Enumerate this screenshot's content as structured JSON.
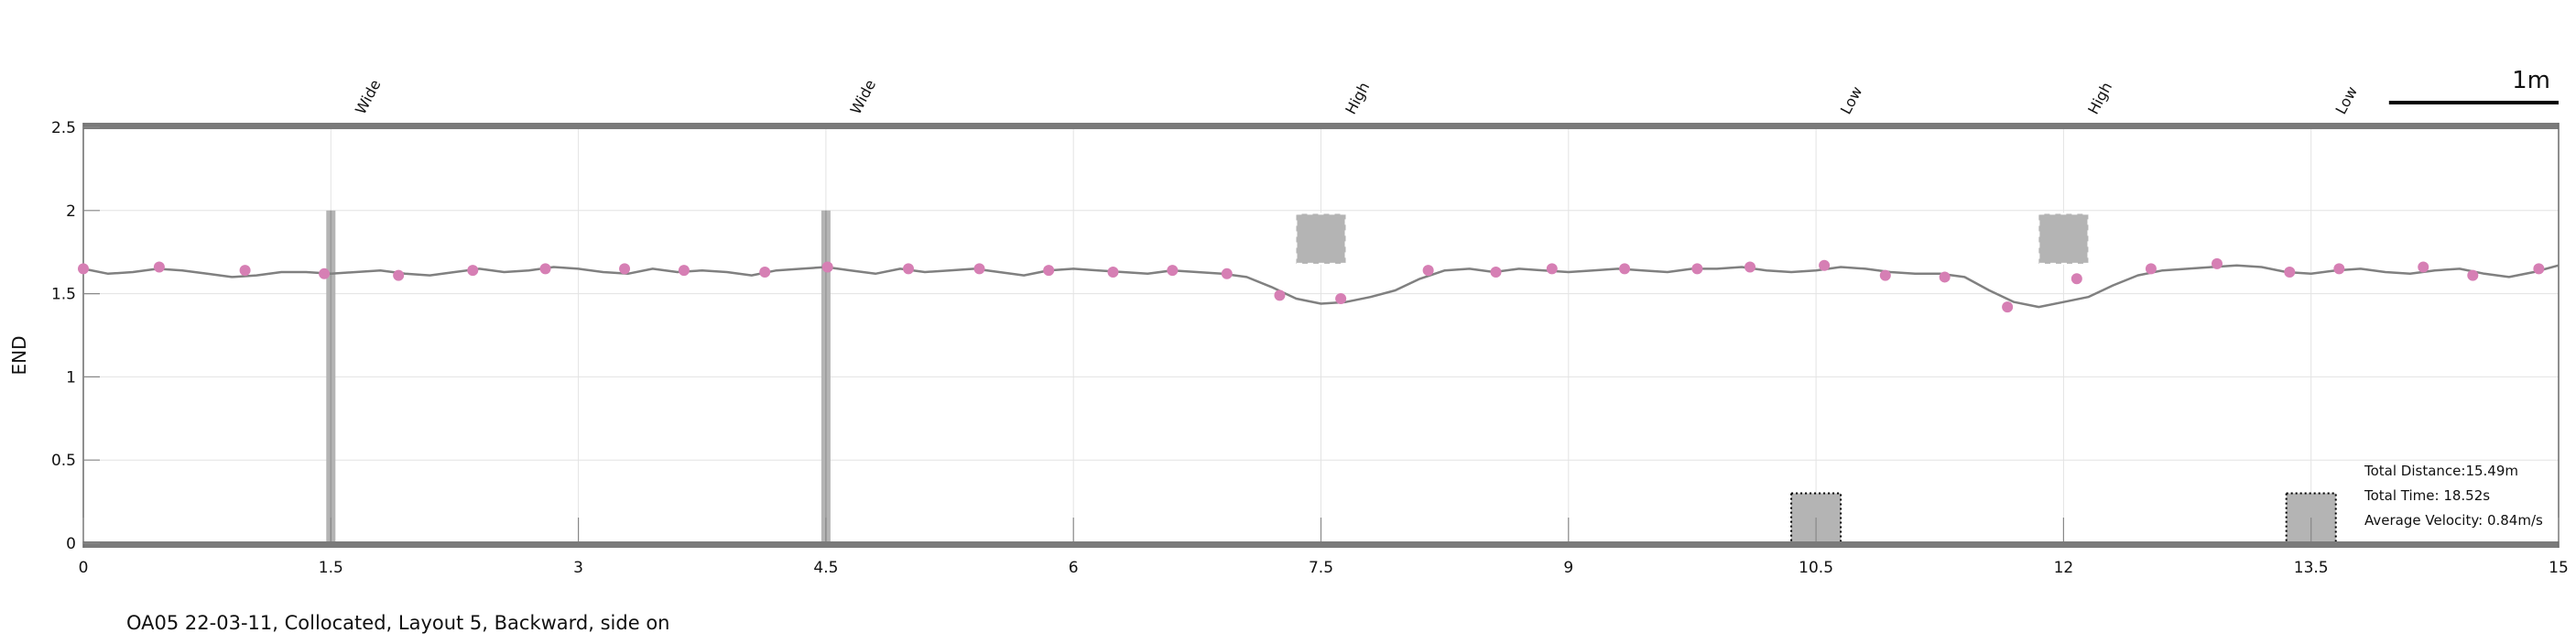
{
  "chart_data": {
    "type": "line",
    "title": "",
    "xlabel": "",
    "ylabel": "END",
    "xlim": [
      0,
      15
    ],
    "ylim": [
      0,
      2.5
    ],
    "xticks": [
      0,
      1.5,
      3,
      4.5,
      6,
      7.5,
      9,
      10.5,
      12,
      13.5,
      15
    ],
    "xtick_labels": [
      "0",
      "1.5",
      "3",
      "4.5",
      "6",
      "7.5",
      "9",
      "10.5",
      "12",
      "13.5",
      "15"
    ],
    "yticks": [
      0,
      0.5,
      1,
      1.5,
      2,
      2.5
    ],
    "ytick_labels": [
      "0",
      "0.5",
      "1",
      "1.5",
      "2",
      "2.5"
    ],
    "grid": true,
    "line_color": "#808080",
    "marker_color": "#d67fb4",
    "obstacle_color": "#b4b4b4",
    "series": [
      {
        "x": [
          0,
          0.15,
          0.3,
          0.45,
          0.6,
          0.75,
          0.9,
          1.05,
          1.2,
          1.35,
          1.5,
          1.65,
          1.8,
          1.95,
          2.1,
          2.25,
          2.4,
          2.55,
          2.7,
          2.85,
          3.0,
          3.15,
          3.3,
          3.45,
          3.6,
          3.75,
          3.9,
          4.05,
          4.2,
          4.35,
          4.5,
          4.65,
          4.8,
          4.95,
          5.1,
          5.25,
          5.4,
          5.55,
          5.7,
          5.85,
          6.0,
          6.15,
          6.3,
          6.45,
          6.6,
          6.75,
          6.9,
          7.05,
          7.2,
          7.35,
          7.5,
          7.65,
          7.8,
          7.95,
          8.1,
          8.25,
          8.4,
          8.55,
          8.7,
          8.85,
          9.0,
          9.15,
          9.3,
          9.45,
          9.6,
          9.75,
          9.9,
          10.05,
          10.2,
          10.35,
          10.5,
          10.65,
          10.8,
          10.95,
          11.1,
          11.25,
          11.4,
          11.55,
          11.7,
          11.85,
          12.0,
          12.15,
          12.3,
          12.45,
          12.6,
          12.75,
          12.9,
          13.05,
          13.2,
          13.35,
          13.5,
          13.65,
          13.8,
          13.95,
          14.1,
          14.25,
          14.4,
          14.55,
          14.7,
          14.85,
          15.0
        ],
        "y": [
          1.65,
          1.62,
          1.63,
          1.65,
          1.64,
          1.62,
          1.6,
          1.61,
          1.63,
          1.63,
          1.62,
          1.63,
          1.64,
          1.62,
          1.61,
          1.63,
          1.65,
          1.63,
          1.64,
          1.66,
          1.65,
          1.63,
          1.62,
          1.65,
          1.63,
          1.64,
          1.63,
          1.61,
          1.64,
          1.65,
          1.66,
          1.64,
          1.62,
          1.65,
          1.63,
          1.64,
          1.65,
          1.63,
          1.61,
          1.64,
          1.65,
          1.64,
          1.63,
          1.62,
          1.64,
          1.63,
          1.62,
          1.6,
          1.54,
          1.47,
          1.44,
          1.45,
          1.48,
          1.52,
          1.59,
          1.64,
          1.65,
          1.63,
          1.65,
          1.64,
          1.63,
          1.64,
          1.65,
          1.64,
          1.63,
          1.65,
          1.65,
          1.66,
          1.64,
          1.63,
          1.64,
          1.66,
          1.65,
          1.63,
          1.62,
          1.62,
          1.6,
          1.52,
          1.45,
          1.42,
          1.45,
          1.48,
          1.55,
          1.61,
          1.64,
          1.65,
          1.66,
          1.67,
          1.66,
          1.63,
          1.62,
          1.64,
          1.65,
          1.63,
          1.62,
          1.64,
          1.65,
          1.62,
          1.6,
          1.63,
          1.67
        ]
      }
    ],
    "footstrikes": {
      "x": [
        0.0,
        0.46,
        0.98,
        1.46,
        1.91,
        2.36,
        2.8,
        3.28,
        3.64,
        4.13,
        4.51,
        5.0,
        5.43,
        5.85,
        6.24,
        6.6,
        6.93,
        7.25,
        7.62,
        8.15,
        8.56,
        8.9,
        9.34,
        9.78,
        10.1,
        10.55,
        10.92,
        11.28,
        11.66,
        12.08,
        12.53,
        12.93,
        13.37,
        13.67,
        14.18,
        14.48,
        14.88
      ],
      "y": [
        1.65,
        1.66,
        1.64,
        1.62,
        1.61,
        1.64,
        1.65,
        1.65,
        1.64,
        1.63,
        1.66,
        1.65,
        1.65,
        1.64,
        1.63,
        1.64,
        1.62,
        1.49,
        1.47,
        1.64,
        1.63,
        1.65,
        1.65,
        1.65,
        1.66,
        1.67,
        1.61,
        1.6,
        1.42,
        1.59,
        1.65,
        1.68,
        1.63,
        1.65,
        1.66,
        1.61,
        1.65
      ]
    },
    "obstacles": [
      {
        "label": "Wide",
        "x": 1.5,
        "kind": "pole",
        "y0": 0,
        "y1": 2.0
      },
      {
        "label": "Wide",
        "x": 4.5,
        "kind": "pole",
        "y0": 0,
        "y1": 2.0
      },
      {
        "label": "High",
        "x": 7.5,
        "kind": "overhead",
        "y0": 1.68,
        "y1": 1.98,
        "width": 0.3
      },
      {
        "label": "Low",
        "x": 10.5,
        "kind": "ground",
        "y0": 0,
        "y1": 0.3,
        "width": 0.3
      },
      {
        "label": "High",
        "x": 12.0,
        "kind": "overhead",
        "y0": 1.68,
        "y1": 1.98,
        "width": 0.3
      },
      {
        "label": "Low",
        "x": 13.5,
        "kind": "ground",
        "y0": 0,
        "y1": 0.3,
        "width": 0.3
      }
    ],
    "scale_bar_label": "1m",
    "scale_bar_length": 1.0,
    "stats": [
      "Total Distance:15.49m",
      "Total Time: 18.52s",
      "Average Velocity: 0.84m/s"
    ]
  },
  "caption": "OA05 22-03-11, Collocated, Layout 5, Backward, side on"
}
